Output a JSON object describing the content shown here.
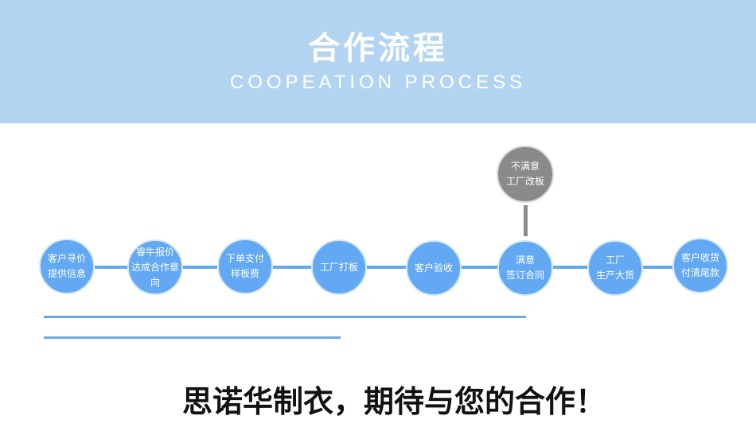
{
  "header": {
    "title": "合作流程",
    "subtitle": "COOPEATION PROCESS"
  },
  "steps": [
    {
      "line1": "客户寻价",
      "line2": "提供信息"
    },
    {
      "line1": "睿牛报价",
      "line2": "达成合作意向"
    },
    {
      "line1": "下单支付",
      "line2": "样板费"
    },
    {
      "line1": "工厂打板",
      "line2": ""
    },
    {
      "line1": "客户验收",
      "line2": ""
    },
    {
      "line1": "满意",
      "line2": "签订合同"
    },
    {
      "line1": "工厂",
      "line2": "生产大货"
    },
    {
      "line1": "客户收货",
      "line2": "付清尾款"
    }
  ],
  "branch": {
    "line1": "不满意",
    "line2": "工厂改板"
  },
  "slogan": "思诺华制衣，期待与您的合作！",
  "colors": {
    "header": "#b3d4f1",
    "step": "#63a8f3",
    "branch": "#8a8a8a"
  }
}
